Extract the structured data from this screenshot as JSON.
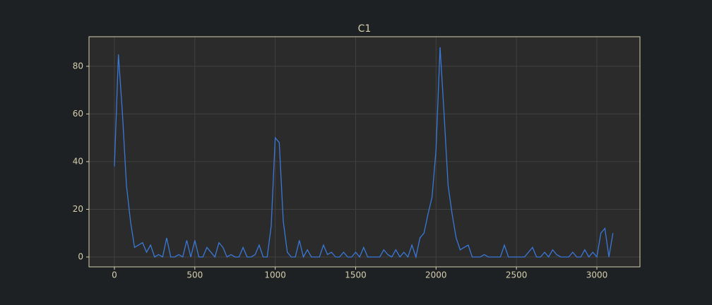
{
  "chart_data": {
    "type": "line",
    "title": "C1",
    "x": [
      0,
      25,
      50,
      75,
      100,
      125,
      150,
      175,
      200,
      225,
      250,
      275,
      300,
      325,
      350,
      375,
      400,
      425,
      450,
      475,
      500,
      525,
      550,
      575,
      600,
      625,
      650,
      675,
      700,
      725,
      750,
      775,
      800,
      825,
      850,
      875,
      900,
      925,
      950,
      975,
      1000,
      1025,
      1050,
      1075,
      1100,
      1125,
      1150,
      1175,
      1200,
      1225,
      1250,
      1275,
      1300,
      1325,
      1350,
      1375,
      1400,
      1425,
      1450,
      1475,
      1500,
      1525,
      1550,
      1575,
      1600,
      1625,
      1650,
      1675,
      1700,
      1725,
      1750,
      1775,
      1800,
      1825,
      1850,
      1875,
      1900,
      1925,
      1950,
      1975,
      2000,
      2025,
      2050,
      2075,
      2100,
      2125,
      2150,
      2175,
      2200,
      2225,
      2250,
      2275,
      2300,
      2325,
      2350,
      2375,
      2400,
      2425,
      2450,
      2475,
      2500,
      2525,
      2550,
      2575,
      2600,
      2625,
      2650,
      2675,
      2700,
      2725,
      2750,
      2775,
      2800,
      2825,
      2850,
      2875,
      2900,
      2925,
      2950,
      2975,
      3000,
      3025,
      3050,
      3075,
      3100
    ],
    "series": [
      {
        "name": "C1",
        "color": "#3a78d8",
        "values": [
          38,
          85,
          60,
          30,
          15,
          4,
          5,
          6,
          2,
          5,
          0,
          1,
          0,
          8,
          0,
          0,
          1,
          0,
          7,
          0,
          7,
          0,
          0,
          4,
          2,
          0,
          6,
          4,
          0,
          1,
          0,
          0,
          4,
          0,
          0,
          1,
          5,
          0,
          0,
          13,
          50,
          48,
          15,
          2,
          0,
          0,
          7,
          0,
          3,
          0,
          0,
          0,
          5,
          1,
          2,
          0,
          0,
          2,
          0,
          0,
          2,
          0,
          4,
          0,
          0,
          0,
          0,
          3,
          1,
          0,
          3,
          0,
          2,
          0,
          5,
          0,
          8,
          10,
          18,
          25,
          45,
          88,
          60,
          30,
          18,
          8,
          3,
          4,
          5,
          0,
          0,
          0,
          1,
          0,
          0,
          0,
          0,
          5,
          0,
          0,
          0,
          0,
          0,
          2,
          4,
          0,
          0,
          2,
          0,
          3,
          1,
          0,
          0,
          0,
          2,
          0,
          0,
          3,
          0,
          2,
          0,
          10,
          12,
          0,
          10
        ]
      }
    ],
    "xlim": [
      -158,
      3268
    ],
    "ylim": [
      -4.15,
      92.4
    ],
    "xticks": [
      0,
      500,
      1000,
      1500,
      2000,
      2500,
      3000
    ],
    "yticks": [
      0,
      20,
      40,
      60,
      80
    ],
    "grid": true
  }
}
